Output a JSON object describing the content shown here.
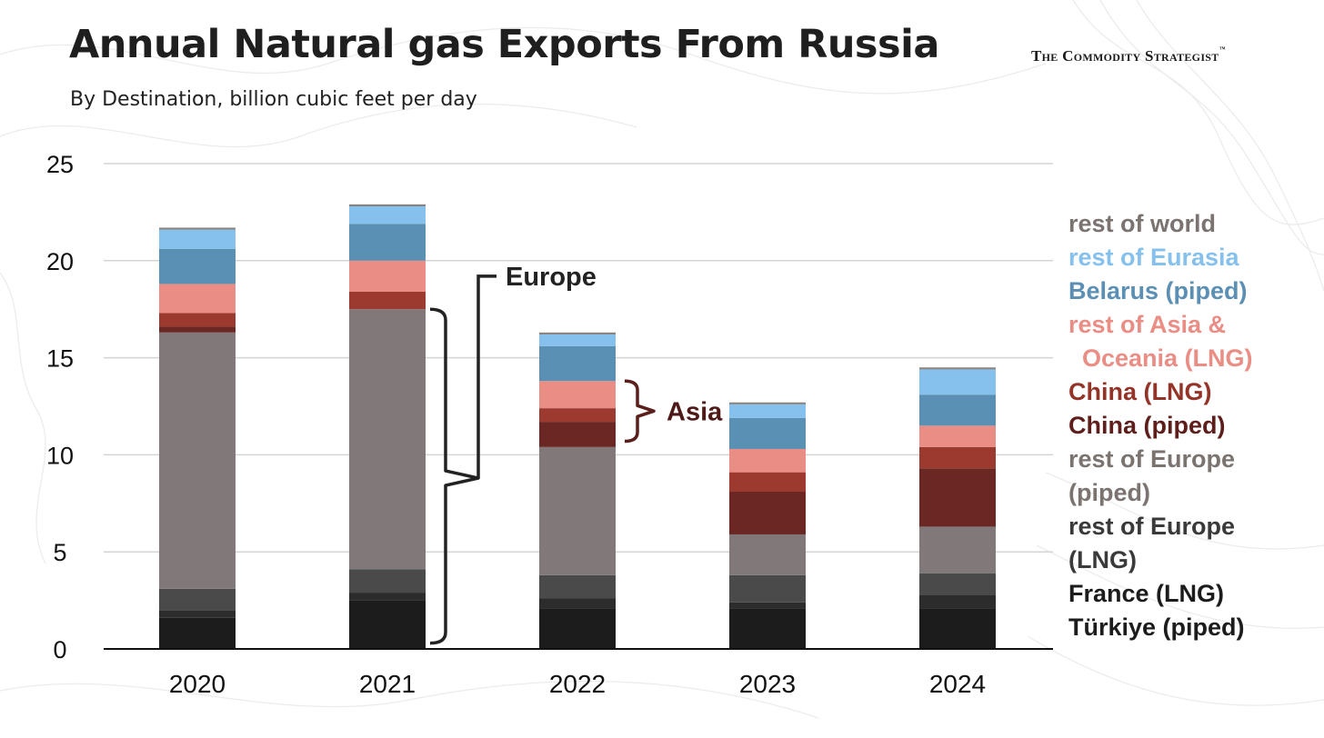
{
  "title": "Annual Natural gas Exports From Russia",
  "brand": {
    "name": "The Commodity Strategist",
    "mark": "™"
  },
  "subtitle": "By Destination, billion cubic feet per day",
  "chart_data": {
    "type": "bar",
    "stacked": true,
    "title": "Annual Natural gas Exports From Russia",
    "subtitle": "By Destination, billion cubic feet per day",
    "xlabel": "",
    "ylabel": "",
    "ylim": [
      0,
      25
    ],
    "yticks": [
      0,
      5,
      10,
      15,
      20,
      25
    ],
    "grid": true,
    "legend_position": "right",
    "categories": [
      "2020",
      "2021",
      "2022",
      "2023",
      "2024"
    ],
    "series": [
      {
        "name": "Türkiye (piped)",
        "color": "#1c1c1c",
        "values": [
          1.6,
          2.5,
          2.1,
          2.1,
          2.1
        ]
      },
      {
        "name": "France (LNG)",
        "color": "#2c2c2c",
        "values": [
          0.4,
          0.4,
          0.5,
          0.3,
          0.7
        ]
      },
      {
        "name": "rest of Europe (LNG)",
        "color": "#4a4a4a",
        "values": [
          1.1,
          1.2,
          1.2,
          1.4,
          1.1
        ]
      },
      {
        "name": "rest of Europe (piped)",
        "color": "#807879",
        "values": [
          13.2,
          13.4,
          6.6,
          2.1,
          2.4
        ]
      },
      {
        "name": "China (piped)",
        "color": "#6b2724",
        "values": [
          0.3,
          0.0,
          1.3,
          2.2,
          3.0
        ]
      },
      {
        "name": "China (LNG)",
        "color": "#9c3a30",
        "values": [
          0.7,
          0.9,
          0.7,
          1.0,
          1.1
        ]
      },
      {
        "name": "rest of Asia & Oceania (LNG)",
        "color": "#e98d85",
        "values": [
          1.5,
          1.6,
          1.4,
          1.2,
          1.1
        ]
      },
      {
        "name": "Belarus (piped)",
        "color": "#5b90b5",
        "values": [
          1.8,
          1.9,
          1.8,
          1.6,
          1.6
        ]
      },
      {
        "name": "rest of Eurasia",
        "color": "#85c1ec",
        "values": [
          1.0,
          0.9,
          0.6,
          0.7,
          1.3
        ]
      },
      {
        "name": "rest of world",
        "color": "#8a827f",
        "values": [
          0.1,
          0.1,
          0.1,
          0.1,
          0.1
        ]
      }
    ],
    "annotations": [
      {
        "label": "Europe",
        "category": "2021",
        "span": [
          0.3,
          17.5
        ]
      },
      {
        "label": "Asia",
        "category": "2022",
        "span": [
          10.7,
          13.8
        ]
      }
    ]
  },
  "legend": [
    {
      "label": "rest of world",
      "color": "#7b7370"
    },
    {
      "label": "rest of Eurasia",
      "color": "#85c1ec"
    },
    {
      "label": "Belarus (piped)",
      "color": "#5b8fb4"
    },
    {
      "label": "rest of Asia &\n  Oceania (LNG)",
      "color": "#e98d85"
    },
    {
      "label": "China (LNG)",
      "color": "#943428"
    },
    {
      "label": "China (piped)",
      "color": "#5e1f1c"
    },
    {
      "label": "rest of Europe (piped)",
      "color": "#7b7370",
      "wrap": true
    },
    {
      "label": "rest of Europe (LNG)",
      "color": "#3a3a3a",
      "wrap": true
    },
    {
      "label": "France (LNG)",
      "color": "#1c1c1c"
    },
    {
      "label": "Türkiye (piped)",
      "color": "#1c1c1c"
    }
  ]
}
